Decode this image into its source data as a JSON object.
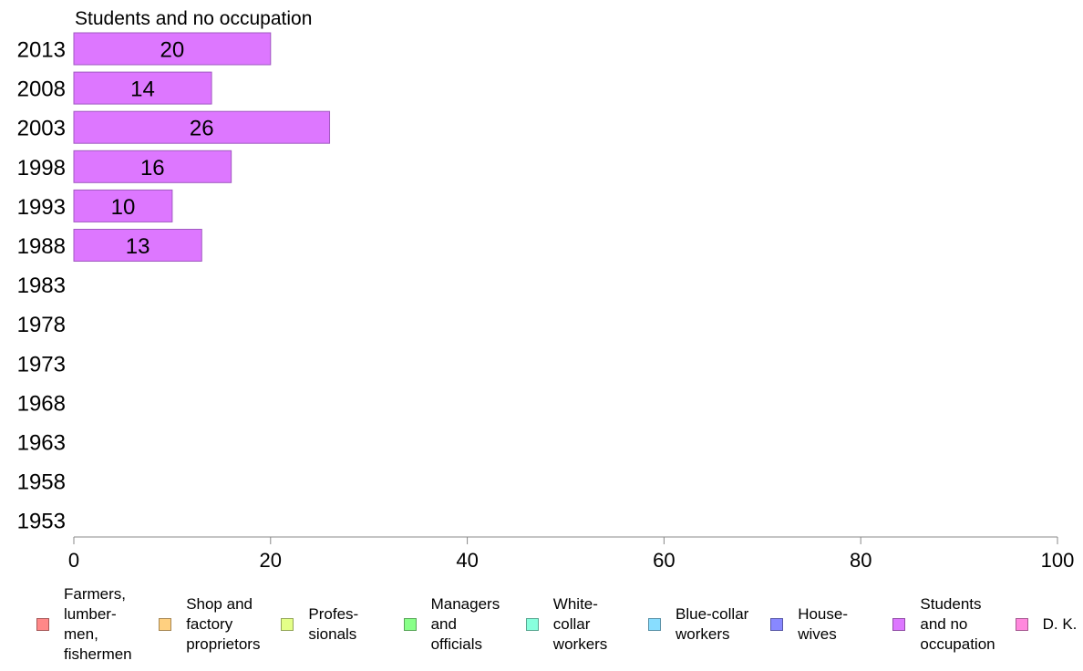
{
  "chart_data": {
    "type": "bar",
    "orientation": "horizontal",
    "title": "Students and no occupation",
    "categories": [
      "2013",
      "2008",
      "2003",
      "1998",
      "1993",
      "1988",
      "1983",
      "1978",
      "1973",
      "1968",
      "1963",
      "1958",
      "1953"
    ],
    "series": [
      {
        "name": "Students and no occupation",
        "values": [
          20,
          14,
          26,
          16,
          10,
          13,
          null,
          null,
          null,
          null,
          null,
          null,
          null
        ],
        "color": "#dd77ff"
      }
    ],
    "xlim": [
      0,
      100
    ],
    "xticks": [
      "0",
      "20",
      "40",
      "60",
      "80",
      "100"
    ],
    "grid": false,
    "legend_position": "bottom",
    "legend": [
      {
        "label": "Farmers,\nlumber-\nmen,\nfishermen",
        "color": "#ff8888"
      },
      {
        "label": "Shop and\nfactory\nproprietors",
        "color": "#ffd080"
      },
      {
        "label": "Profes-\nsionals",
        "color": "#e4ff88"
      },
      {
        "label": "Managers\nand\nofficials",
        "color": "#88ff88"
      },
      {
        "label": "White-\ncollar\nworkers",
        "color": "#88ffdd"
      },
      {
        "label": "Blue-collar\nworkers",
        "color": "#88ddff"
      },
      {
        "label": "House-\nwives",
        "color": "#8888ff"
      },
      {
        "label": "Students\nand no\noccupation",
        "color": "#dd77ff"
      },
      {
        "label": "D. K.",
        "color": "#ff88dd"
      }
    ]
  }
}
